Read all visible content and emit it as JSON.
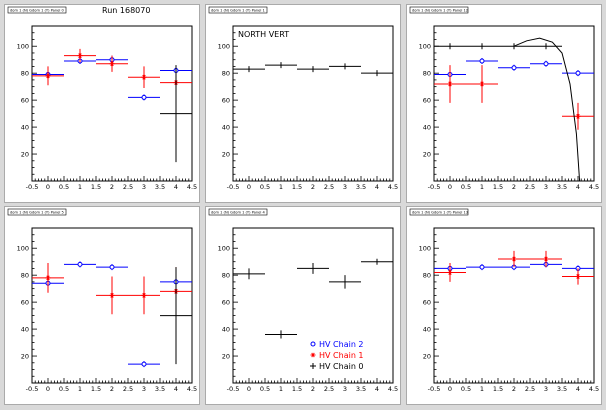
{
  "colors": {
    "chain2": "#0000ff",
    "chain1": "#ff0000",
    "chain0": "#000000"
  },
  "legend": [
    {
      "name": "HV Chain 2",
      "series": "chain2",
      "marker": "circle"
    },
    {
      "name": "HV Chain 1",
      "series": "chain1",
      "marker": "star"
    },
    {
      "name": "HV Chain 0",
      "series": "chain0",
      "marker": "plus"
    }
  ],
  "chart_data": [
    {
      "type": "scatter",
      "title": "dom 1 (N) Gdom 1 (Y) Panel 0",
      "label": "Run 168070",
      "xlim": [
        -0.5,
        4.5
      ],
      "ylim": [
        0,
        115
      ],
      "xticks": [
        "-0.5",
        "0",
        "0.5",
        "1",
        "1.5",
        "2",
        "2.5",
        "3",
        "3.5",
        "4",
        "4.5"
      ],
      "yticks": [
        "20",
        "40",
        "60",
        "80",
        "100"
      ],
      "series": [
        {
          "series": "chain2",
          "points": [
            {
              "x": 0,
              "y": 79,
              "ex": 0.5,
              "ey": 4
            },
            {
              "x": 1,
              "y": 89,
              "ex": 0.5,
              "ey": 2
            },
            {
              "x": 2,
              "y": 90,
              "ex": 0.5,
              "ey": 3
            },
            {
              "x": 3,
              "y": 62,
              "ex": 0.5,
              "ey": 1
            },
            {
              "x": 4,
              "y": 82,
              "ex": 0.5,
              "ey": 2
            }
          ]
        },
        {
          "series": "chain1",
          "points": [
            {
              "x": 0,
              "y": 78,
              "ex": 0.5,
              "ey": 7
            },
            {
              "x": 1,
              "y": 93,
              "ex": 0.5,
              "ey": 5
            },
            {
              "x": 2,
              "y": 87,
              "ex": 0.5,
              "ey": 6
            },
            {
              "x": 3,
              "y": 77,
              "ex": 0.5,
              "ey": 8
            },
            {
              "x": 4,
              "y": 73,
              "ex": 0.5,
              "ey": 10
            }
          ]
        },
        {
          "series": "chain0",
          "points": [
            {
              "x": 4,
              "y": 50,
              "ex": 0.5,
              "ey": 36
            }
          ]
        }
      ]
    },
    {
      "type": "scatter",
      "title": "dom 1 (N) Gdom 1 (Y) Panel 1",
      "label": "NORTH VERT",
      "xlim": [
        -0.5,
        4.5
      ],
      "ylim": [
        0,
        115
      ],
      "xticks": [
        "-0.5",
        "0",
        "0.5",
        "1",
        "1.5",
        "2",
        "2.5",
        "3",
        "3.5",
        "4",
        "4.5"
      ],
      "yticks": [
        "20",
        "40",
        "60",
        "80",
        "100"
      ],
      "series": [
        {
          "series": "chain0",
          "points": [
            {
              "x": 0,
              "y": 83,
              "ex": 0.5,
              "ey": 1.5
            },
            {
              "x": 1,
              "y": 86,
              "ex": 0.5,
              "ey": 1.5
            },
            {
              "x": 2,
              "y": 83,
              "ex": 0.5,
              "ey": 1.5
            },
            {
              "x": 3,
              "y": 85,
              "ex": 0.5,
              "ey": 1.5
            },
            {
              "x": 4,
              "y": 80,
              "ex": 0.5,
              "ey": 1.5
            }
          ]
        }
      ]
    },
    {
      "type": "scatter",
      "title": "dom 1 (N) Gdom 1 (Y) Panel 12",
      "label": "",
      "xlim": [
        -0.5,
        4.5
      ],
      "ylim": [
        0,
        115
      ],
      "xticks": [
        "-0.5",
        "0",
        "0.5",
        "1",
        "1.5",
        "2",
        "2.5",
        "3",
        "3.5",
        "4",
        "4.5"
      ],
      "yticks": [
        "20",
        "40",
        "60",
        "80",
        "100"
      ],
      "series": [
        {
          "series": "chain2",
          "points": [
            {
              "x": 0,
              "y": 79,
              "ex": 0.5,
              "ey": 2
            },
            {
              "x": 1,
              "y": 89,
              "ex": 0.5,
              "ey": 2
            },
            {
              "x": 2,
              "y": 84,
              "ex": 0.5,
              "ey": 1.5
            },
            {
              "x": 3,
              "y": 87,
              "ex": 0.5,
              "ey": 2
            },
            {
              "x": 4,
              "y": 80,
              "ex": 0.5,
              "ey": 2
            }
          ]
        },
        {
          "series": "chain1",
          "points": [
            {
              "x": 0,
              "y": 72,
              "ex": 0.5,
              "ey": 14
            },
            {
              "x": 1,
              "y": 72,
              "ex": 0.5,
              "ey": 14
            },
            {
              "x": 4,
              "y": 48,
              "ex": 0.5,
              "ey": 10
            }
          ]
        },
        {
          "series": "chain0",
          "points": [
            {
              "x": 0,
              "y": 100,
              "ex": 0.5,
              "ey": 0.5
            },
            {
              "x": 1,
              "y": 100,
              "ex": 0.5,
              "ey": 0.5
            },
            {
              "x": 2,
              "y": 100,
              "ex": 0.5,
              "ey": 0.5
            },
            {
              "x": 3,
              "y": 100,
              "ex": 0.5,
              "ey": 0.5
            }
          ]
        }
      ],
      "fit_curve": [
        [
          2,
          100
        ],
        [
          2.4,
          104
        ],
        [
          2.8,
          106
        ],
        [
          3.2,
          103
        ],
        [
          3.5,
          95
        ],
        [
          3.75,
          72
        ],
        [
          3.95,
          35
        ],
        [
          4.05,
          0
        ]
      ]
    },
    {
      "type": "scatter",
      "title": "dom 1 (N) Gdom 1 (Y) Panel 5",
      "label": "",
      "xlim": [
        -0.5,
        4.5
      ],
      "ylim": [
        0,
        115
      ],
      "xticks": [
        "-0.5",
        "0",
        "0.5",
        "1",
        "1.5",
        "2",
        "2.5",
        "3",
        "3.5",
        "4",
        "4.5"
      ],
      "yticks": [
        "20",
        "40",
        "60",
        "80",
        "100"
      ],
      "series": [
        {
          "series": "chain2",
          "points": [
            {
              "x": 0,
              "y": 74,
              "ex": 0.5,
              "ey": 3
            },
            {
              "x": 1,
              "y": 88,
              "ex": 0.5,
              "ey": 1.5
            },
            {
              "x": 2,
              "y": 86,
              "ex": 0.5,
              "ey": 1.5
            },
            {
              "x": 3,
              "y": 14,
              "ex": 0.5,
              "ey": 1
            },
            {
              "x": 4,
              "y": 75,
              "ex": 0.5,
              "ey": 2
            }
          ]
        },
        {
          "series": "chain1",
          "points": [
            {
              "x": 0,
              "y": 78,
              "ex": 0.5,
              "ey": 11
            },
            {
              "x": 2,
              "y": 65,
              "ex": 0.5,
              "ey": 14
            },
            {
              "x": 3,
              "y": 65,
              "ex": 0.5,
              "ey": 14
            },
            {
              "x": 4,
              "y": 68,
              "ex": 0.5,
              "ey": 18
            }
          ]
        },
        {
          "series": "chain0",
          "points": [
            {
              "x": 4,
              "y": 50,
              "ex": 0.5,
              "ey": 36
            }
          ]
        }
      ]
    },
    {
      "type": "scatter",
      "title": "dom 1 (N) Gdom 1 (Y) Panel 4",
      "label": "",
      "xlim": [
        -0.5,
        4.5
      ],
      "ylim": [
        0,
        115
      ],
      "xticks": [
        "-0.5",
        "0",
        "0.5",
        "1",
        "1.5",
        "2",
        "2.5",
        "3",
        "3.5",
        "4",
        "4.5"
      ],
      "yticks": [
        "20",
        "40",
        "60",
        "80",
        "100"
      ],
      "series": [
        {
          "series": "chain0",
          "points": [
            {
              "x": 0,
              "y": 81,
              "ex": 0.5,
              "ey": 4
            },
            {
              "x": 1,
              "y": 36,
              "ex": 0.5,
              "ey": 3
            },
            {
              "x": 2,
              "y": 85,
              "ex": 0.5,
              "ey": 4
            },
            {
              "x": 3,
              "y": 75,
              "ex": 0.5,
              "ey": 5
            },
            {
              "x": 4,
              "y": 90,
              "ex": 0.5,
              "ey": 1.5
            }
          ]
        }
      ],
      "show_legend": true
    },
    {
      "type": "scatter",
      "title": "dom 1 (N) Gdom 1 (Y) Panel 13",
      "label": "",
      "xlim": [
        -0.5,
        4.5
      ],
      "ylim": [
        0,
        115
      ],
      "xticks": [
        "-0.5",
        "0",
        "0.5",
        "1",
        "1.5",
        "2",
        "2.5",
        "3",
        "3.5",
        "4",
        "4.5"
      ],
      "yticks": [
        "20",
        "40",
        "60",
        "80",
        "100"
      ],
      "series": [
        {
          "series": "chain2",
          "points": [
            {
              "x": 0,
              "y": 85,
              "ex": 0.5,
              "ey": 3
            },
            {
              "x": 1,
              "y": 86,
              "ex": 0.5,
              "ey": 1.5
            },
            {
              "x": 2,
              "y": 86,
              "ex": 0.5,
              "ey": 2
            },
            {
              "x": 3,
              "y": 88,
              "ex": 0.5,
              "ey": 2
            },
            {
              "x": 4,
              "y": 85,
              "ex": 0.5,
              "ey": 2
            }
          ]
        },
        {
          "series": "chain1",
          "points": [
            {
              "x": 0,
              "y": 82,
              "ex": 0.5,
              "ey": 7
            },
            {
              "x": 2,
              "y": 92,
              "ex": 0.5,
              "ey": 6
            },
            {
              "x": 3,
              "y": 92,
              "ex": 0.5,
              "ey": 6
            },
            {
              "x": 4,
              "y": 79,
              "ex": 0.5,
              "ey": 6
            }
          ]
        }
      ]
    }
  ]
}
